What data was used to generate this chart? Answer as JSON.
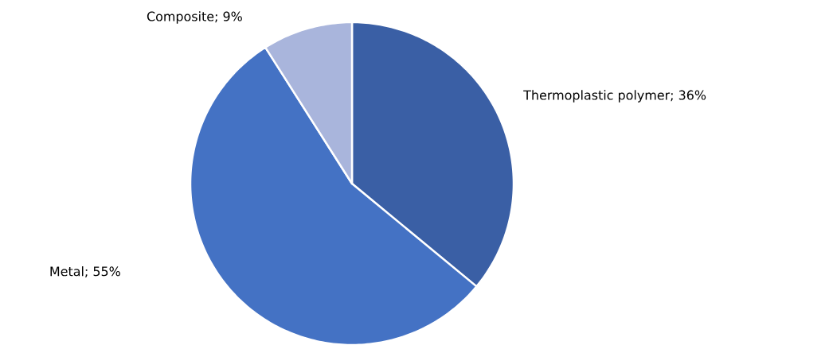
{
  "chart_data": {
    "type": "pie",
    "categories": [
      "Thermoplastic polymer; 36%",
      "Metal; 55%",
      "Composite; 9%"
    ],
    "values": [
      36,
      55,
      9
    ],
    "colors": [
      "#3a5fa5",
      "#4472c4",
      "#a9b5dc"
    ]
  }
}
